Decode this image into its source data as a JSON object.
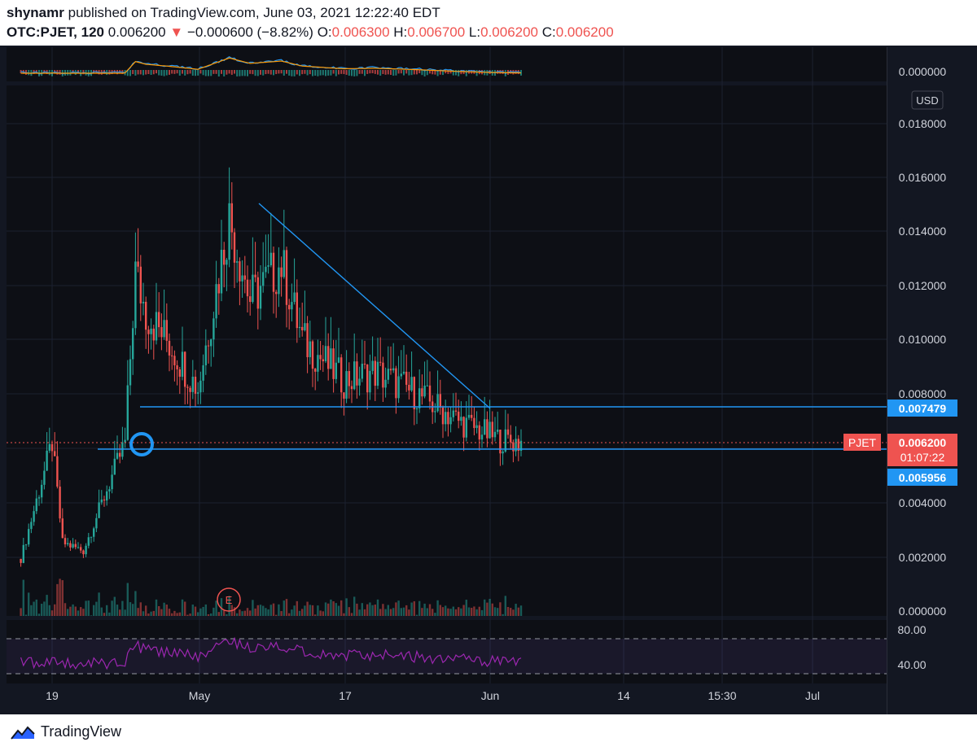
{
  "header": {
    "author": "shynamr",
    "published": "published on TradingView.com, June 03, 2021 12:22:40 EDT",
    "symbol": "OTC:PJET, 120",
    "last": "0.006200",
    "change_arrow": "▼",
    "change": "−0.000600 (−8.82%)",
    "o_label": "O:",
    "o_value": "0.006300",
    "h_label": "H:",
    "h_value": "0.006700",
    "l_label": "L:",
    "l_value": "0.006200",
    "c_label": "C:",
    "c_value": "0.006200"
  },
  "footer": {
    "brand": "TradingView",
    "logo_icon": "tradingview-logo-icon"
  },
  "colors": {
    "bg": "#131722",
    "up": "#26a69a",
    "down": "#ef5350",
    "line": "#2196f3",
    "rsi": "#9c27b0",
    "macd": "#2196f3",
    "signal": "#ff9800"
  },
  "macd_pane": {
    "axis_label": "0.000000"
  },
  "rsi_pane": {
    "ticks": [
      "80.00",
      "40.00"
    ]
  },
  "chart_data": {
    "type": "candlestick",
    "currency": "USD",
    "ylim": [
      0,
      0.0185
    ],
    "y_ticks": [
      "0.018000",
      "0.016000",
      "0.014000",
      "0.012000",
      "0.010000",
      "0.008000",
      "0.004000",
      "0.002000",
      "0.000000"
    ],
    "x_ticks": [
      "19",
      "May",
      "17",
      "Jun",
      "14",
      "15:30",
      "Jul"
    ],
    "last_price": {
      "symbol": "PJET",
      "value": "0.006200",
      "countdown": "01:07:22"
    },
    "resistance": {
      "value": 0.007479,
      "label": "0.007479"
    },
    "support": {
      "value": 0.005956,
      "label": "0.005956"
    },
    "earnings_marker": "E",
    "series_close": [
      {
        "date": "2021-04-16",
        "close": 0.0019
      },
      {
        "date": "2021-04-19",
        "close": 0.0062
      },
      {
        "date": "2021-04-20",
        "close": 0.0025
      },
      {
        "date": "2021-04-22",
        "close": 0.0022
      },
      {
        "date": "2021-04-26",
        "close": 0.0062
      },
      {
        "date": "2021-04-27",
        "close": 0.0125
      },
      {
        "date": "2021-04-28",
        "close": 0.011
      },
      {
        "date": "2021-04-30",
        "close": 0.01
      },
      {
        "date": "2021-05-03",
        "close": 0.0082
      },
      {
        "date": "2021-05-06",
        "close": 0.0145
      },
      {
        "date": "2021-05-08",
        "close": 0.0115
      },
      {
        "date": "2021-05-11",
        "close": 0.0128
      },
      {
        "date": "2021-05-13",
        "close": 0.01
      },
      {
        "date": "2021-05-17",
        "close": 0.0085
      },
      {
        "date": "2021-05-20",
        "close": 0.0088
      },
      {
        "date": "2021-05-24",
        "close": 0.008
      },
      {
        "date": "2021-05-28",
        "close": 0.007
      },
      {
        "date": "2021-06-01",
        "close": 0.0063
      },
      {
        "date": "2021-06-03",
        "close": 0.0062
      }
    ]
  }
}
